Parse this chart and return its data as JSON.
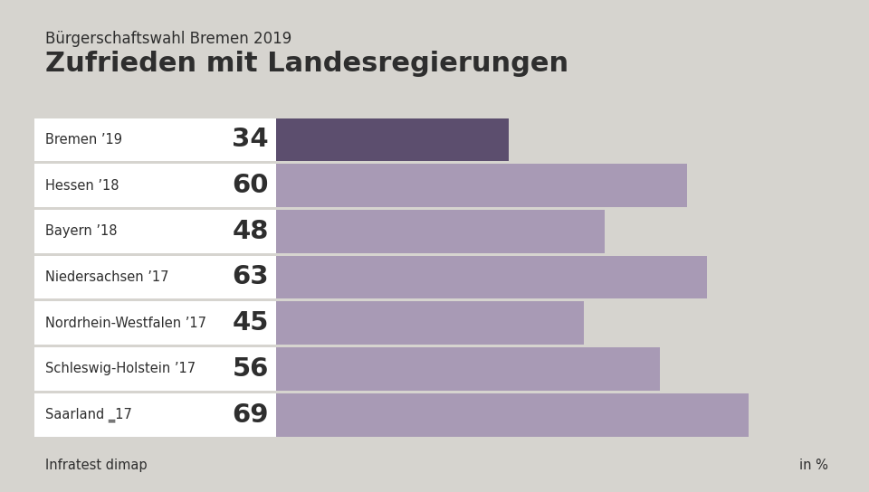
{
  "supertitle": "Bürgerschaftswahl Bremen 2019",
  "title": "Zufrieden mit Landesregierungen",
  "categories": [
    "Bremen ’19",
    "Hessen ’18",
    "Bayern ’18",
    "Niedersachsen ’17",
    "Nordrhein-Westfalen ’17",
    "Schleswig-Holstein ’17",
    "Saarland ‗17"
  ],
  "values": [
    34,
    60,
    48,
    63,
    45,
    56,
    69
  ],
  "bar_colors": [
    "#5c4e6e",
    "#a89ab5",
    "#a89ab5",
    "#a89ab5",
    "#a89ab5",
    "#a89ab5",
    "#a89ab5"
  ],
  "background_color": "#d6d4cf",
  "white_box_color": "#ffffff",
  "text_color": "#2e2e2e",
  "source_text": "Infratest dimap",
  "unit_text": "in %",
  "supertitle_fontsize": 12,
  "title_fontsize": 22,
  "category_fontsize": 10.5,
  "value_fontsize": 21,
  "source_fontsize": 10.5
}
